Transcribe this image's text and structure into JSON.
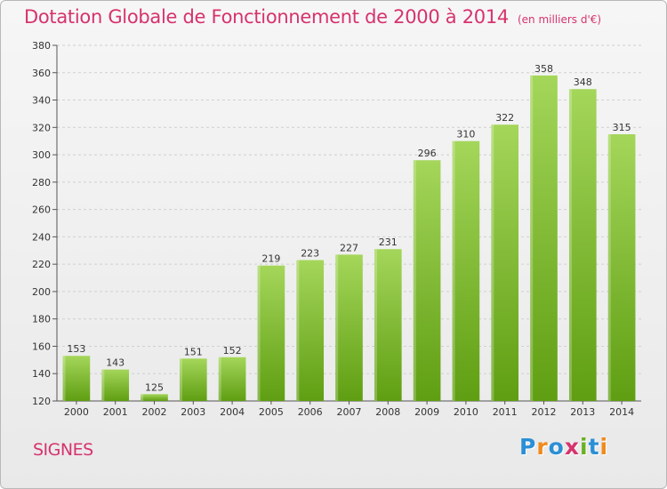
{
  "header": {
    "title": "Dotation Globale de Fonctionnement de 2000 à 2014",
    "unit": "(en milliers d'€)"
  },
  "footer": {
    "commune": "SIGNES",
    "logo_letters": [
      "P",
      "r",
      "o",
      "x",
      "i",
      "t",
      "i"
    ],
    "logo_colors": [
      "#2b8fd6",
      "#f08a1c",
      "#2b8fd6",
      "#d6336c",
      "#6ab023",
      "#2b8fd6",
      "#f08a1c"
    ]
  },
  "colors": {
    "bar_top": "#a4d65a",
    "bar_bottom": "#5f9e12",
    "title": "#d6336c"
  },
  "chart_data": {
    "type": "bar",
    "title": "Dotation Globale de Fonctionnement de 2000 à 2014",
    "subtitle": "(en milliers d'€)",
    "xlabel": "",
    "ylabel": "",
    "categories": [
      "2000",
      "2001",
      "2002",
      "2003",
      "2004",
      "2005",
      "2006",
      "2007",
      "2008",
      "2009",
      "2010",
      "2011",
      "2012",
      "2013",
      "2014"
    ],
    "values": [
      153,
      143,
      125,
      151,
      152,
      219,
      223,
      227,
      231,
      296,
      310,
      322,
      358,
      348,
      315
    ],
    "ylim": [
      120,
      380
    ],
    "yticks": [
      120,
      140,
      160,
      180,
      200,
      220,
      240,
      260,
      280,
      300,
      320,
      340,
      360,
      380
    ],
    "grid": true
  }
}
